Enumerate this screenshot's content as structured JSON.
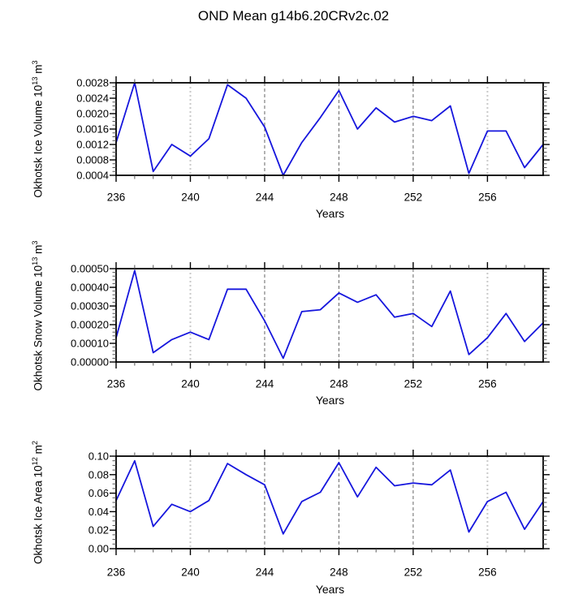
{
  "title": "OND Mean g14b6.20CRv2c.02",
  "colors": {
    "line": "#1616dd",
    "axis": "#000000",
    "tick_minor": "#555555",
    "grid_light": "#c9c9c9",
    "grid_dark": "#666666"
  },
  "chart_data": [
    {
      "type": "line",
      "ylabel": "Okhotsk Ice Volume 10^13 m^3",
      "xlabel": "Years",
      "x": [
        236,
        237,
        238,
        239,
        240,
        241,
        242,
        243,
        244,
        245,
        246,
        247,
        248,
        249,
        250,
        251,
        252,
        253,
        254,
        255,
        256,
        257,
        258,
        259
      ],
      "values": [
        0.00125,
        0.0028,
        0.0005,
        0.0012,
        0.0009,
        0.00135,
        0.00275,
        0.0024,
        0.00165,
        0.0004,
        0.00125,
        0.0019,
        0.0026,
        0.0016,
        0.00215,
        0.00178,
        0.00193,
        0.00182,
        0.0022,
        0.00045,
        0.00155,
        0.00155,
        0.0006,
        0.0012
      ],
      "xlim": [
        236,
        259
      ],
      "ylim": [
        0.0004,
        0.0028
      ],
      "yticks": [
        0.0004,
        0.0008,
        0.0012,
        0.0016,
        0.002,
        0.0024,
        0.0028
      ],
      "ytick_decimals": 4,
      "yminor_step": 0.0001,
      "xticks_labeled": [
        236,
        240,
        244,
        248,
        252,
        256
      ],
      "xminor_step": 1,
      "grid_light_x": [
        240,
        256
      ],
      "grid_dark_x": [
        244,
        248,
        252
      ],
      "legend": "none",
      "grid": "vertical-dashed"
    },
    {
      "type": "line",
      "ylabel": "Okhotsk Snow Volume 10^13 m^3",
      "xlabel": "Years",
      "x": [
        236,
        237,
        238,
        239,
        240,
        241,
        242,
        243,
        244,
        245,
        246,
        247,
        248,
        249,
        250,
        251,
        252,
        253,
        254,
        255,
        256,
        257,
        258,
        259
      ],
      "values": [
        0.00013,
        0.00049,
        5e-05,
        0.00012,
        0.00016,
        0.00012,
        0.00039,
        0.00039,
        0.00022,
        2e-05,
        0.00027,
        0.00028,
        0.00037,
        0.00032,
        0.00036,
        0.00024,
        0.00026,
        0.00019,
        0.00038,
        4e-05,
        0.00013,
        0.00026,
        0.00011,
        0.00021
      ],
      "xlim": [
        236,
        259
      ],
      "ylim": [
        0.0,
        0.0005
      ],
      "yticks": [
        0.0,
        0.0001,
        0.0002,
        0.0003,
        0.0004,
        0.0005
      ],
      "ytick_decimals": 5,
      "yminor_step": 2e-05,
      "xticks_labeled": [
        236,
        240,
        244,
        248,
        252,
        256
      ],
      "xminor_step": 1,
      "grid_light_x": [
        240,
        256
      ],
      "grid_dark_x": [
        244,
        248,
        252
      ],
      "legend": "none",
      "grid": "vertical-dashed"
    },
    {
      "type": "line",
      "ylabel": "Okhotsk Ice Area 10^12 m^2",
      "xlabel": "Years",
      "x": [
        236,
        237,
        238,
        239,
        240,
        241,
        242,
        243,
        244,
        245,
        246,
        247,
        248,
        249,
        250,
        251,
        252,
        253,
        254,
        255,
        256,
        257,
        258,
        259
      ],
      "values": [
        0.052,
        0.095,
        0.024,
        0.048,
        0.04,
        0.052,
        0.092,
        0.08,
        0.069,
        0.016,
        0.051,
        0.061,
        0.093,
        0.056,
        0.088,
        0.068,
        0.071,
        0.069,
        0.085,
        0.018,
        0.051,
        0.061,
        0.021,
        0.051
      ],
      "xlim": [
        236,
        259
      ],
      "ylim": [
        0.0,
        0.1
      ],
      "yticks": [
        0.0,
        0.02,
        0.04,
        0.06,
        0.08,
        0.1
      ],
      "ytick_decimals": 2,
      "yminor_step": 0.005,
      "xticks_labeled": [
        236,
        240,
        244,
        248,
        252,
        256
      ],
      "xminor_step": 1,
      "grid_light_x": [
        240,
        256
      ],
      "grid_dark_x": [
        244,
        248,
        252
      ],
      "legend": "none",
      "grid": "vertical-dashed"
    }
  ]
}
